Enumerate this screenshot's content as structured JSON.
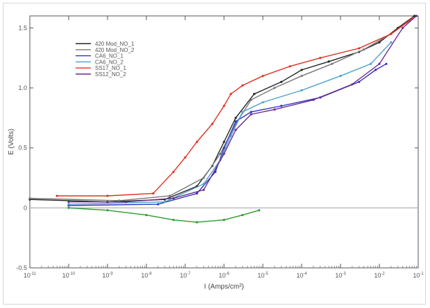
{
  "chart_data": {
    "type": "line",
    "title": "",
    "xlabel": "I (Amps/cm²)",
    "ylabel": "E (Volts)",
    "x_scale": "log",
    "xlim": [
      1e-11,
      0.1
    ],
    "ylim": [
      -0.5,
      1.6
    ],
    "x_ticks": [
      {
        "value": 1e-11,
        "base": "10",
        "exp": "-11"
      },
      {
        "value": 1e-10,
        "base": "10",
        "exp": "-10"
      },
      {
        "value": 1e-09,
        "base": "10",
        "exp": "-9"
      },
      {
        "value": 1e-08,
        "base": "10",
        "exp": "-8"
      },
      {
        "value": 1e-07,
        "base": "10",
        "exp": "-7"
      },
      {
        "value": 1e-06,
        "base": "10",
        "exp": "-6"
      },
      {
        "value": 1e-05,
        "base": "10",
        "exp": "-5"
      },
      {
        "value": 0.0001,
        "base": "10",
        "exp": "-4"
      },
      {
        "value": 0.001,
        "base": "10",
        "exp": "-3"
      },
      {
        "value": 0.01,
        "base": "10",
        "exp": "-2"
      },
      {
        "value": 0.1,
        "base": "10",
        "exp": "-1"
      }
    ],
    "y_ticks": [
      {
        "value": -0.5,
        "label": "-0.5"
      },
      {
        "value": 0,
        "label": "0"
      },
      {
        "value": 0.5,
        "label": "0.5"
      },
      {
        "value": 1.0,
        "label": "1.0"
      },
      {
        "value": 1.5,
        "label": "1.5"
      }
    ],
    "reference_line": {
      "y": 0,
      "color": "#bbbbbb"
    },
    "grid": false,
    "legend": "top-left",
    "series": [
      {
        "name": "420 Mod_NO_1",
        "color": "#222222",
        "points": [
          [
            1e-11,
            0.07
          ],
          [
            1e-09,
            0.05
          ],
          [
            3e-08,
            0.07
          ],
          [
            2e-07,
            0.18
          ],
          [
            5e-07,
            0.35
          ],
          [
            1e-06,
            0.55
          ],
          [
            2e-06,
            0.75
          ],
          [
            6e-06,
            0.95
          ],
          [
            3e-05,
            1.05
          ],
          [
            0.0001,
            1.15
          ],
          [
            0.0005,
            1.22
          ],
          [
            0.003,
            1.3
          ],
          [
            0.01,
            1.38
          ],
          [
            0.03,
            1.5
          ],
          [
            0.08,
            1.6
          ]
        ]
      },
      {
        "name": "420 Mod_NO_2",
        "color": "#777777",
        "points": [
          [
            1e-11,
            0.08
          ],
          [
            2e-09,
            0.06
          ],
          [
            4e-08,
            0.1
          ],
          [
            3e-07,
            0.25
          ],
          [
            8e-07,
            0.45
          ],
          [
            2e-06,
            0.7
          ],
          [
            5e-06,
            0.9
          ],
          [
            2e-05,
            1.0
          ],
          [
            0.0001,
            1.1
          ],
          [
            0.0006,
            1.2
          ],
          [
            0.004,
            1.32
          ],
          [
            0.02,
            1.45
          ],
          [
            0.06,
            1.56
          ]
        ]
      },
      {
        "name": "CA6_NO_1",
        "color": "#3030c0",
        "points": [
          [
            1e-10,
            0.02
          ],
          [
            2e-08,
            0.03
          ],
          [
            2e-07,
            0.12
          ],
          [
            6e-07,
            0.3
          ],
          [
            1e-06,
            0.5
          ],
          [
            2e-06,
            0.72
          ],
          [
            5e-06,
            0.8
          ],
          [
            3e-05,
            0.85
          ],
          [
            0.0003,
            0.92
          ],
          [
            0.003,
            1.05
          ],
          [
            0.008,
            1.15
          ],
          [
            0.015,
            1.2
          ]
        ]
      },
      {
        "name": "CA6_NO_2",
        "color": "#4aa0c8",
        "points": [
          [
            1e-10,
            0.03
          ],
          [
            3e-08,
            0.05
          ],
          [
            3e-07,
            0.2
          ],
          [
            8e-07,
            0.4
          ],
          [
            1.5e-06,
            0.6
          ],
          [
            3e-06,
            0.8
          ],
          [
            1e-05,
            0.88
          ],
          [
            0.0001,
            0.98
          ],
          [
            0.001,
            1.1
          ],
          [
            0.006,
            1.2
          ],
          [
            0.02,
            1.38
          ]
        ]
      },
      {
        "name": "SS17_NO_1",
        "color": "#e03020",
        "points": [
          [
            5e-11,
            0.1
          ],
          [
            1e-09,
            0.1
          ],
          [
            1.5e-08,
            0.12
          ],
          [
            5e-08,
            0.3
          ],
          [
            1e-07,
            0.42
          ],
          [
            2e-07,
            0.55
          ],
          [
            5e-07,
            0.7
          ],
          [
            1e-06,
            0.85
          ],
          [
            1.5e-06,
            0.95
          ],
          [
            3e-06,
            1.02
          ],
          [
            1e-05,
            1.1
          ],
          [
            5e-05,
            1.18
          ],
          [
            0.0003,
            1.25
          ],
          [
            0.003,
            1.33
          ],
          [
            0.02,
            1.45
          ],
          [
            0.07,
            1.58
          ]
        ]
      },
      {
        "name": "SS12_NO_2",
        "color": "#6a2a90",
        "points": [
          [
            1e-10,
            0.05
          ],
          [
            3e-09,
            0.05
          ],
          [
            5e-08,
            0.08
          ],
          [
            3e-07,
            0.15
          ],
          [
            1e-06,
            0.45
          ],
          [
            2e-06,
            0.65
          ],
          [
            5e-06,
            0.78
          ],
          [
            2e-05,
            0.82
          ],
          [
            0.0002,
            0.9
          ],
          [
            0.002,
            1.03
          ],
          [
            0.01,
            1.2
          ],
          [
            0.04,
            1.5
          ],
          [
            0.09,
            1.6
          ]
        ]
      },
      {
        "name": "",
        "color": "#2a9a2a",
        "points": [
          [
            1e-10,
            0.0
          ],
          [
            1e-09,
            -0.02
          ],
          [
            1e-08,
            -0.06
          ],
          [
            5e-08,
            -0.1
          ],
          [
            2e-07,
            -0.12
          ],
          [
            1e-06,
            -0.1
          ],
          [
            3e-06,
            -0.06
          ],
          [
            8e-06,
            -0.02
          ]
        ]
      }
    ]
  }
}
